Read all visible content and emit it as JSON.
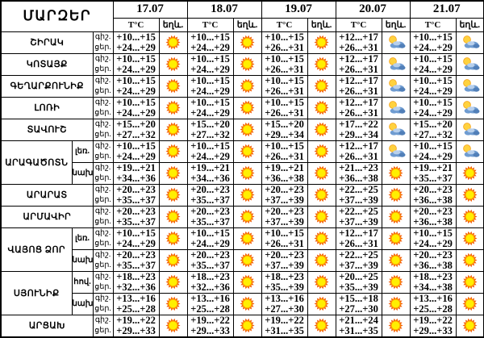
{
  "title": "ՄԱՐԶԵՐ",
  "dates": [
    "17.07",
    "18.07",
    "19.07",
    "20.07",
    "21.07"
  ],
  "sub_headers": {
    "temp": "T°C",
    "weather": "եղև."
  },
  "time_labels": {
    "night": "գիշ.",
    "day": "ցեր."
  },
  "colors": {
    "sun_rays": "#f25c05",
    "sun_ring": "#ffa200",
    "sun_core": "#ffef00",
    "cloud_dark": "#517fb8",
    "cloud_mid": "#6f9cd1",
    "cloud_light": "#b8d0ec",
    "small_sun": "#ffd23e",
    "small_sun_edge": "#f5a623",
    "border": "#000000"
  },
  "regions": [
    {
      "name": "ՇԻՐԱԿ",
      "zone": null,
      "days": [
        {
          "night": "+10...+15",
          "day": "+24...+29",
          "icon": "sun"
        },
        {
          "night": "+10...+15",
          "day": "+24...+29",
          "icon": "sun"
        },
        {
          "night": "+10...+15",
          "day": "+26...+31",
          "icon": "sun"
        },
        {
          "night": "+12...+17",
          "day": "+26...+31",
          "icon": "sun-cloud"
        },
        {
          "night": "+10...+15",
          "day": "+24...+29",
          "icon": "sun-cloud"
        }
      ]
    },
    {
      "name": "ԿՈՏԱՅՔ",
      "zone": null,
      "days": [
        {
          "night": "+10...+15",
          "day": "+24...+29",
          "icon": "sun"
        },
        {
          "night": "+10...+15",
          "day": "+24...+29",
          "icon": "sun"
        },
        {
          "night": "+10...+15",
          "day": "+26...+31",
          "icon": "sun"
        },
        {
          "night": "+12...+17",
          "day": "+26...+31",
          "icon": "sun-cloud"
        },
        {
          "night": "+10...+15",
          "day": "+24...+29",
          "icon": "sun-cloud"
        }
      ]
    },
    {
      "name": "ԳԵՂԱՐՔՈՒՆԻՔ",
      "zone": null,
      "days": [
        {
          "night": "+10...+15",
          "day": "+24...+29",
          "icon": "sun"
        },
        {
          "night": "+10...+15",
          "day": "+24...+29",
          "icon": "sun"
        },
        {
          "night": "+10...+15",
          "day": "+26...+31",
          "icon": "sun"
        },
        {
          "night": "+12...+17",
          "day": "+26...+31",
          "icon": "sun-cloud"
        },
        {
          "night": "+10...+15",
          "day": "+24...+29",
          "icon": "sun-cloud"
        }
      ]
    },
    {
      "name": "ԼՈՌԻ",
      "zone": null,
      "days": [
        {
          "night": "+10...+15",
          "day": "+24...+29",
          "icon": "sun"
        },
        {
          "night": "+10...+15",
          "day": "+24...+29",
          "icon": "sun"
        },
        {
          "night": "+10...+15",
          "day": "+26...+31",
          "icon": "sun"
        },
        {
          "night": "+12...+17",
          "day": "+26...+31",
          "icon": "sun-cloud"
        },
        {
          "night": "+10...+15",
          "day": "+24...+29",
          "icon": "sun-cloud"
        }
      ]
    },
    {
      "name": "ՏԱՎՈՒՇ",
      "zone": null,
      "days": [
        {
          "night": "+15...+20",
          "day": "+27...+32",
          "icon": "sun"
        },
        {
          "night": "+15...+20",
          "day": "+27...+32",
          "icon": "sun"
        },
        {
          "night": "+15...+20",
          "day": "+29...+34",
          "icon": "sun"
        },
        {
          "night": "+17...+22",
          "day": "+29...+34",
          "icon": "sun-cloud"
        },
        {
          "night": "+15...+20",
          "day": "+27...+32",
          "icon": "sun-cloud"
        }
      ]
    },
    {
      "name": "ԱՐԱԳԱԾՈՏՆ",
      "span": 2,
      "zone": "լեռ.",
      "days": [
        {
          "night": "+10...+15",
          "day": "+24...+29",
          "icon": "sun"
        },
        {
          "night": "+10...+15",
          "day": "+24...+29",
          "icon": "sun"
        },
        {
          "night": "+10...+15",
          "day": "+26...+31",
          "icon": "sun"
        },
        {
          "night": "+12...+17",
          "day": "+26...+31",
          "icon": "sun-cloud"
        },
        {
          "night": "+10...+15",
          "day": "+24...+29",
          "icon": "sun-cloud"
        }
      ]
    },
    {
      "name": null,
      "zone": "նախ.",
      "days": [
        {
          "night": "+19...+21",
          "day": "+34...+36",
          "icon": "sun"
        },
        {
          "night": "+19...+21",
          "day": "+34...+36",
          "icon": "sun"
        },
        {
          "night": "+19...+21",
          "day": "+36...+38",
          "icon": "sun"
        },
        {
          "night": "+21...+23",
          "day": "+36...+38",
          "icon": "sun"
        },
        {
          "night": "+19...+21",
          "day": "+35...+37",
          "icon": "sun"
        }
      ]
    },
    {
      "name": "ԱՐԱՐԱՏ",
      "zone": null,
      "days": [
        {
          "night": "+20...+23",
          "day": "+35...+37",
          "icon": "sun"
        },
        {
          "night": "+20...+23",
          "day": "+35...+37",
          "icon": "sun"
        },
        {
          "night": "+20...+23",
          "day": "+37...+39",
          "icon": "sun"
        },
        {
          "night": "+22...+25",
          "day": "+37...+39",
          "icon": "sun"
        },
        {
          "night": "+20...+23",
          "day": "+36...+38",
          "icon": "sun"
        }
      ]
    },
    {
      "name": "ԱՐՄԱՎԻՐ",
      "zone": null,
      "days": [
        {
          "night": "+20...+23",
          "day": "+35...+37",
          "icon": "sun"
        },
        {
          "night": "+20...+23",
          "day": "+35...+37",
          "icon": "sun"
        },
        {
          "night": "+20...+23",
          "day": "+37...+39",
          "icon": "sun"
        },
        {
          "night": "+22...+25",
          "day": "+37...+39",
          "icon": "sun"
        },
        {
          "night": "+20...+23",
          "day": "+36...+38",
          "icon": "sun"
        }
      ]
    },
    {
      "name": "ՎԱՅՈՑ ՁՈՐ",
      "span": 2,
      "zone": "լեռ.",
      "days": [
        {
          "night": "+10...+15",
          "day": "+24...+29",
          "icon": "sun"
        },
        {
          "night": "+10...+15",
          "day": "+24...+29",
          "icon": "sun"
        },
        {
          "night": "+10...+15",
          "day": "+26...+31",
          "icon": "sun"
        },
        {
          "night": "+12...+17",
          "day": "+26...+31",
          "icon": "sun"
        },
        {
          "night": "+10...+15",
          "day": "+24...+29",
          "icon": "sun"
        }
      ]
    },
    {
      "name": null,
      "zone": "նախ.",
      "days": [
        {
          "night": "+20...+23",
          "day": "+35...+37",
          "icon": "sun"
        },
        {
          "night": "+20...+23",
          "day": "+35...+37",
          "icon": "sun"
        },
        {
          "night": "+20...+23",
          "day": "+37...+39",
          "icon": "sun"
        },
        {
          "night": "+22...+25",
          "day": "+37...+39",
          "icon": "sun"
        },
        {
          "night": "+20...+23",
          "day": "+36...+38",
          "icon": "sun"
        }
      ]
    },
    {
      "name": "ՍՅՈՒՆԻՔ",
      "span": 2,
      "zone": "հով.",
      "days": [
        {
          "night": "+18...+23",
          "day": "+32...+36",
          "icon": "sun"
        },
        {
          "night": "+18...+23",
          "day": "+32...+36",
          "icon": "sun"
        },
        {
          "night": "+18...+23",
          "day": "+35...+39",
          "icon": "sun"
        },
        {
          "night": "+20...+25",
          "day": "+35...+39",
          "icon": "sun"
        },
        {
          "night": "+18...+23",
          "day": "+34...+38",
          "icon": "sun"
        }
      ]
    },
    {
      "name": null,
      "zone": "նախ",
      "days": [
        {
          "night": "+13...+16",
          "day": "+25...+28",
          "icon": "sun"
        },
        {
          "night": "+13...+16",
          "day": "+25...+28",
          "icon": "sun"
        },
        {
          "night": "+13...+16",
          "day": "+27...+30",
          "icon": "sun"
        },
        {
          "night": "+15...+18",
          "day": "+27...+30",
          "icon": "sun"
        },
        {
          "night": "+13...+16",
          "day": "+25...+28",
          "icon": "sun"
        }
      ]
    },
    {
      "name": "ԱՐՑԱԽ",
      "zone": null,
      "days": [
        {
          "night": "+19...+22",
          "day": "+29...+33",
          "icon": "sun"
        },
        {
          "night": "+19...+22",
          "day": "+29...+33",
          "icon": "sun"
        },
        {
          "night": "+19...+22",
          "day": "+31...+35",
          "icon": "sun"
        },
        {
          "night": "+21...+24",
          "day": "+31...+35",
          "icon": "sun"
        },
        {
          "night": "+19...+22",
          "day": "+29...+33",
          "icon": "sun"
        }
      ]
    }
  ]
}
